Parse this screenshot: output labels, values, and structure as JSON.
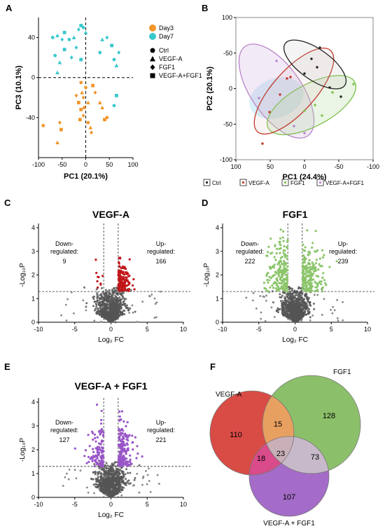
{
  "panels": {
    "A": {
      "letter": "A",
      "xlabel": "PC1 (20.1%)",
      "ylabel": "PC3 (10.1%)",
      "xticks": [
        "-100",
        "-50",
        "0",
        "50",
        "100"
      ],
      "yticks": [
        "40",
        "0",
        "-40"
      ],
      "legend_days": [
        {
          "label": "Day3",
          "color": "#f0962c"
        },
        {
          "label": "Day7",
          "color": "#39c8cc"
        }
      ],
      "legend_shapes": [
        {
          "label": "Ctrl",
          "shape": "circle"
        },
        {
          "label": "VEGF-A",
          "shape": "triangle"
        },
        {
          "label": "FGF1",
          "shape": "diamond"
        },
        {
          "label": "VEGF-A+FGF1",
          "shape": "square"
        }
      ]
    },
    "B": {
      "letter": "B",
      "xlabel": "PC1 (24.4%)",
      "ylabel": "PC2 (20.1%)",
      "xticks": [
        "100",
        "50",
        "0",
        "-50",
        "-100"
      ],
      "yticks": [
        "100",
        "-50",
        "0",
        "-50",
        "-100"
      ],
      "legend": [
        {
          "label": "Ctrl",
          "color": "#222222"
        },
        {
          "label": "VEGF-A",
          "color": "#c0392b"
        },
        {
          "label": "FGF1",
          "color": "#7cbf4a"
        },
        {
          "label": "VEGF-A+FGF1",
          "color": "#b784c9"
        }
      ]
    },
    "C": {
      "letter": "C",
      "title": "VEGF-A",
      "xlabel": "Log₂ FC",
      "ylabel": "-Log₁₀P",
      "xticks": [
        "-10",
        "-5",
        "0",
        "5",
        "10"
      ],
      "yticks": [
        "0",
        "1",
        "2",
        "3",
        "4"
      ],
      "down_label": "Down-\nregulated:",
      "down_count": "9",
      "up_label": "Up-\nregulated:",
      "up_count": "166",
      "sig_color": "#c0161b"
    },
    "D": {
      "letter": "D",
      "title": "FGF1",
      "xlabel": "Log₂ FC",
      "ylabel": "-Log₁₀P",
      "xticks": [
        "-10",
        "-5",
        "0",
        "5",
        "10"
      ],
      "yticks": [
        "0",
        "1",
        "2",
        "3",
        "4"
      ],
      "down_label": "Down-\nregulated:",
      "down_count": "222",
      "up_label": "Up-\nregulated:",
      "up_count": "239",
      "sig_color": "#8bc56a"
    },
    "E": {
      "letter": "E",
      "title": "VEGF-A + FGF1",
      "xlabel": "Log₂ FC",
      "ylabel": "-Log₁₀P",
      "xticks": [
        "-10",
        "-5",
        "0",
        "5",
        "10"
      ],
      "yticks": [
        "0",
        "1",
        "2",
        "3",
        "4"
      ],
      "down_label": "Down-\nregulated:",
      "down_count": "127",
      "up_label": "Up-\nregulated:",
      "up_count": "221",
      "sig_color": "#9955c8"
    },
    "F": {
      "letter": "F",
      "sets": [
        {
          "label": "VEGF-A",
          "color": "#d94b45"
        },
        {
          "label": "FGF1",
          "color": "#80b85a"
        },
        {
          "label": "VEGF-A + FGF1",
          "color": "#9a5cc2"
        }
      ],
      "regions": {
        "vegf_only": "110",
        "fgf_only": "128",
        "combo_only": "107",
        "vegf_fgf": "15",
        "vegf_combo": "18",
        "fgf_combo": "73",
        "all": "23"
      }
    }
  },
  "chart_data": [
    {
      "type": "scatter",
      "panel": "A",
      "xlabel": "PC1 (20.1%)",
      "ylabel": "PC3 (10.1%)",
      "xlim": [
        -100,
        100
      ],
      "ylim": [
        -80,
        60
      ],
      "series": [
        {
          "name": "Day3",
          "color": "#f0962c",
          "points": [
            [
              -90,
              -48
            ],
            [
              -60,
              -65
            ],
            [
              -55,
              -45
            ],
            [
              -52,
              -52
            ],
            [
              -10,
              -5
            ],
            [
              -8,
              -15
            ],
            [
              -5,
              -20
            ],
            [
              -15,
              -25
            ],
            [
              -3,
              -30
            ],
            [
              5,
              -25
            ],
            [
              -5,
              -38
            ],
            [
              -12,
              -42
            ],
            [
              5,
              -45
            ],
            [
              10,
              -50
            ],
            [
              12,
              -55
            ],
            [
              40,
              -42
            ],
            [
              45,
              -40
            ],
            [
              35,
              -30
            ],
            [
              20,
              -15
            ],
            [
              15,
              -8
            ],
            [
              0,
              -10
            ],
            [
              30,
              -25
            ],
            [
              -20,
              -18
            ],
            [
              -10,
              -32
            ]
          ]
        },
        {
          "name": "Day7",
          "color": "#39c8cc",
          "points": [
            [
              -70,
              40
            ],
            [
              -60,
              42
            ],
            [
              -50,
              38
            ],
            [
              -45,
              45
            ],
            [
              -35,
              38
            ],
            [
              -25,
              40
            ],
            [
              -15,
              48
            ],
            [
              -10,
              52
            ],
            [
              -5,
              50
            ],
            [
              0,
              45
            ],
            [
              -20,
              30
            ],
            [
              -45,
              28
            ],
            [
              -65,
              22
            ],
            [
              -55,
              15
            ],
            [
              -30,
              20
            ],
            [
              -10,
              18
            ],
            [
              30,
              25
            ],
            [
              35,
              38
            ],
            [
              45,
              40
            ],
            [
              55,
              32
            ],
            [
              60,
              18
            ],
            [
              65,
              12
            ],
            [
              70,
              25
            ],
            [
              65,
              -18
            ],
            [
              60,
              -28
            ],
            [
              -60,
              5
            ]
          ]
        }
      ]
    },
    {
      "type": "scatter",
      "panel": "B",
      "xlabel": "PC1 (24.4%)",
      "ylabel": "PC2 (20.1%)",
      "xlim": [
        100,
        -100
      ],
      "ylim": [
        -100,
        100
      ]
    },
    {
      "type": "scatter",
      "panel": "C",
      "title": "VEGF-A",
      "xlabel": "Log₂ FC",
      "ylabel": "-Log₁₀P",
      "xlim": [
        -10,
        10
      ],
      "ylim": [
        0,
        4
      ],
      "down_regulated": 9,
      "up_regulated": 166
    },
    {
      "type": "scatter",
      "panel": "D",
      "title": "FGF1",
      "xlabel": "Log₂ FC",
      "ylabel": "-Log₁₀P",
      "xlim": [
        -10,
        10
      ],
      "ylim": [
        0,
        4
      ],
      "down_regulated": 222,
      "up_regulated": 239
    },
    {
      "type": "scatter",
      "panel": "E",
      "title": "VEGF-A + FGF1",
      "xlabel": "Log₂ FC",
      "ylabel": "-Log₁₀P",
      "xlim": [
        -10,
        10
      ],
      "ylim": [
        0,
        4
      ],
      "down_regulated": 127,
      "up_regulated": 221
    },
    {
      "type": "table",
      "panel": "F",
      "sets": [
        "VEGF-A",
        "FGF1",
        "VEGF-A + FGF1"
      ],
      "regions": {
        "VEGF-A only": 110,
        "FGF1 only": 128,
        "VEGF-A + FGF1 only": 107,
        "VEGF-A & FGF1": 15,
        "VEGF-A & VEGF-A + FGF1": 18,
        "FGF1 & VEGF-A + FGF1": 73,
        "all three": 23
      }
    }
  ]
}
